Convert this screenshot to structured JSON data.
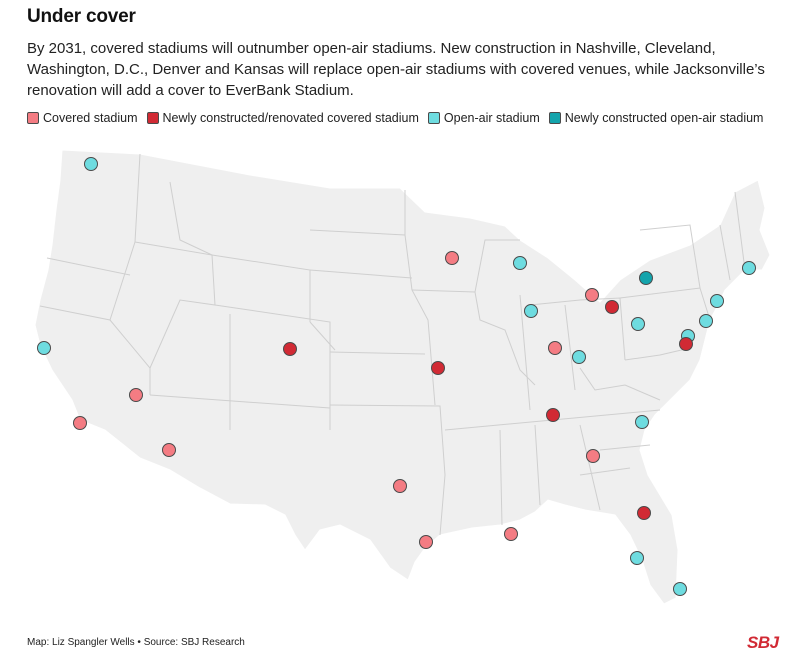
{
  "title": "Under cover",
  "description": "By 2031, covered stadiums will outnumber open-air stadiums. New construction in Nashville, Cleveland, Washington, D.C., Denver and Kansas will replace open-air stadiums with covered venues, while Jacksonville’s renovation will add a cover to EverBank Stadium.",
  "legend": [
    {
      "key": "covered",
      "label": "Covered stadium",
      "color": "#f47c83"
    },
    {
      "key": "new_covered",
      "label": "Newly constructed/renovated covered stadium",
      "color": "#d12a34"
    },
    {
      "key": "open",
      "label": "Open-air stadium",
      "color": "#6edce0"
    },
    {
      "key": "new_open",
      "label": "Newly constructed open-air stadium",
      "color": "#14a4ac"
    }
  ],
  "colors": {
    "land": "#efefef",
    "border": "#ffffff",
    "state_line": "#cfcfcf",
    "marker_stroke": "#4a4a4a",
    "logo": "#d12a34"
  },
  "stadiums": [
    {
      "name": "Seattle",
      "type": "open"
    },
    {
      "name": "San Francisco Bay Area",
      "type": "open"
    },
    {
      "name": "Los Angeles",
      "type": "covered"
    },
    {
      "name": "Las Vegas",
      "type": "covered"
    },
    {
      "name": "Phoenix",
      "type": "covered"
    },
    {
      "name": "Denver",
      "type": "new_covered"
    },
    {
      "name": "Minneapolis",
      "type": "covered"
    },
    {
      "name": "Green Bay",
      "type": "open"
    },
    {
      "name": "Chicago",
      "type": "open"
    },
    {
      "name": "Detroit",
      "type": "covered"
    },
    {
      "name": "Cleveland",
      "type": "new_covered"
    },
    {
      "name": "Buffalo",
      "type": "new_open"
    },
    {
      "name": "Foxborough",
      "type": "open"
    },
    {
      "name": "East Rutherford",
      "type": "open"
    },
    {
      "name": "Philadelphia",
      "type": "open"
    },
    {
      "name": "Pittsburgh",
      "type": "open"
    },
    {
      "name": "Baltimore",
      "type": "open"
    },
    {
      "name": "Washington, D.C.",
      "type": "new_covered"
    },
    {
      "name": "Indianapolis",
      "type": "covered"
    },
    {
      "name": "Cincinnati",
      "type": "open"
    },
    {
      "name": "Kansas City",
      "type": "new_covered"
    },
    {
      "name": "Nashville",
      "type": "new_covered"
    },
    {
      "name": "Charlotte",
      "type": "open"
    },
    {
      "name": "Atlanta",
      "type": "covered"
    },
    {
      "name": "Jacksonville",
      "type": "new_covered"
    },
    {
      "name": "Tampa",
      "type": "open"
    },
    {
      "name": "Miami",
      "type": "open"
    },
    {
      "name": "New Orleans",
      "type": "covered"
    },
    {
      "name": "Houston",
      "type": "covered"
    },
    {
      "name": "Dallas",
      "type": "covered"
    }
  ],
  "footer": "Map: Liz Spangler Wells • Source: SBJ Research",
  "logo": "SBJ"
}
